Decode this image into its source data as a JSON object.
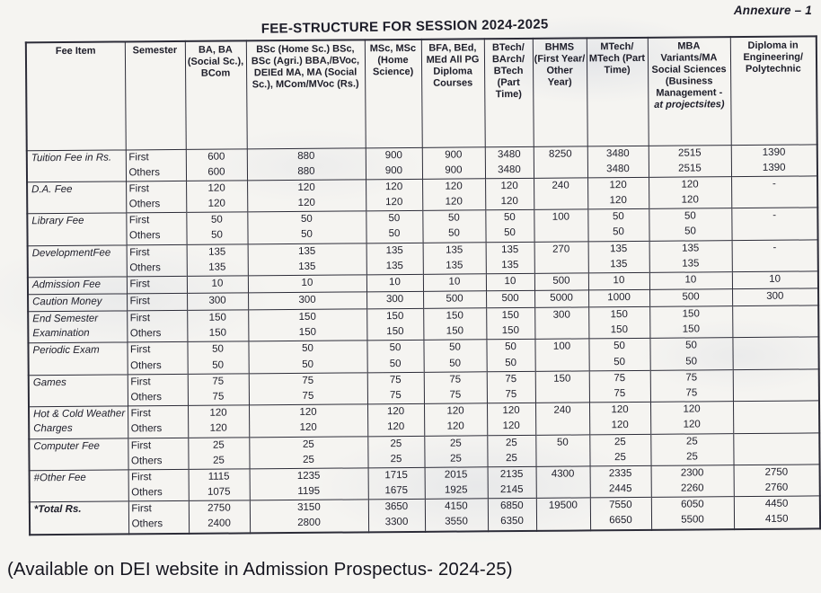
{
  "page": {
    "annexure": "Annexure – 1",
    "title": "FEE-STRUCTURE FOR SESSION 2024-2025",
    "footer": "(Available on DEI website in Admission Prospectus- 2024-25)",
    "ink_color": "#1d1d29",
    "paper_color": "#f5f4f1"
  },
  "table": {
    "columns": [
      {
        "label": "Fee Item",
        "width": 110
      },
      {
        "label": "Semester",
        "width": 67
      },
      {
        "label": "BA, BA (Social Sc.), BCom",
        "width": 68
      },
      {
        "label": "BSc (Home Sc.) BSc, BSc (Agri.) BBA,/BVoc, DEIEd MA, MA (Social Sc.), MCom/MVoc (Rs.)",
        "width": 132
      },
      {
        "label": "MSc, MSc (Home Science)",
        "width": 63
      },
      {
        "label": "BFA, BEd, MEd All PG Diploma Courses",
        "width": 70
      },
      {
        "label": "BTech/ BArch/ BTech (Part Time)",
        "width": 54
      },
      {
        "label": "BHMS (First Year/ Other Year)",
        "width": 60
      },
      {
        "label": "MTech/ MTech (Part Time)",
        "width": 68
      },
      {
        "label": "MBA Variants/MA Social Sciences (Business Management -",
        "italic_note": "at projectsites)",
        "width": 92
      },
      {
        "label": "Diploma in Engineering/ Polytechnic",
        "width": 96
      }
    ],
    "rows": [
      {
        "fee_item": "Tuition Fee in Rs.",
        "semesters": [
          "First",
          "Others"
        ],
        "values": [
          [
            "600",
            "880",
            "900",
            "900",
            "3480",
            "8250",
            "3480",
            "2515",
            "1390"
          ],
          [
            "600",
            "880",
            "900",
            "900",
            "3480",
            "",
            "3480",
            "2515",
            "1390"
          ]
        ]
      },
      {
        "fee_item": "D.A. Fee",
        "semesters": [
          "First",
          "Others"
        ],
        "values": [
          [
            "120",
            "120",
            "120",
            "120",
            "120",
            "240",
            "120",
            "120",
            "-"
          ],
          [
            "120",
            "120",
            "120",
            "120",
            "120",
            "",
            "120",
            "120",
            ""
          ]
        ]
      },
      {
        "fee_item": "Library Fee",
        "semesters": [
          "First",
          "Others"
        ],
        "values": [
          [
            "50",
            "50",
            "50",
            "50",
            "50",
            "100",
            "50",
            "50",
            "-"
          ],
          [
            "50",
            "50",
            "50",
            "50",
            "50",
            "",
            "50",
            "50",
            ""
          ]
        ]
      },
      {
        "fee_item": "DevelopmentFee",
        "semesters": [
          "First",
          "Others"
        ],
        "values": [
          [
            "135",
            "135",
            "135",
            "135",
            "135",
            "270",
            "135",
            "135",
            "-"
          ],
          [
            "135",
            "135",
            "135",
            "135",
            "135",
            "",
            "135",
            "135",
            ""
          ]
        ]
      },
      {
        "fee_item": "Admission Fee",
        "semesters": [
          "First"
        ],
        "values": [
          [
            "10",
            "10",
            "10",
            "10",
            "10",
            "500",
            "10",
            "10",
            "10"
          ]
        ]
      },
      {
        "fee_item": "Caution Money",
        "semesters": [
          "First"
        ],
        "values": [
          [
            "300",
            "300",
            "300",
            "500",
            "500",
            "5000",
            "1000",
            "500",
            "300"
          ]
        ]
      },
      {
        "fee_item": "End Semester Examination",
        "semesters": [
          "First",
          "Others"
        ],
        "values": [
          [
            "150",
            "150",
            "150",
            "150",
            "150",
            "300",
            "150",
            "150",
            ""
          ],
          [
            "150",
            "150",
            "150",
            "150",
            "150",
            "",
            "150",
            "150",
            ""
          ]
        ]
      },
      {
        "fee_item": "Periodic Exam",
        "semesters": [
          "First",
          "Others"
        ],
        "values": [
          [
            "50",
            "50",
            "50",
            "50",
            "50",
            "100",
            "50",
            "50",
            ""
          ],
          [
            "50",
            "50",
            "50",
            "50",
            "50",
            "",
            "50",
            "50",
            ""
          ]
        ]
      },
      {
        "fee_item": "Games",
        "semesters": [
          "First",
          "Others"
        ],
        "values": [
          [
            "75",
            "75",
            "75",
            "75",
            "75",
            "150",
            "75",
            "75",
            ""
          ],
          [
            "75",
            "75",
            "75",
            "75",
            "75",
            "",
            "75",
            "75",
            ""
          ]
        ]
      },
      {
        "fee_item": "Hot & Cold Weather Charges",
        "semesters": [
          "First",
          "Others"
        ],
        "values": [
          [
            "120",
            "120",
            "120",
            "120",
            "120",
            "240",
            "120",
            "120",
            ""
          ],
          [
            "120",
            "120",
            "120",
            "120",
            "120",
            "",
            "120",
            "120",
            ""
          ]
        ]
      },
      {
        "fee_item": "Computer Fee",
        "semesters": [
          "First",
          "Others"
        ],
        "values": [
          [
            "25",
            "25",
            "25",
            "25",
            "25",
            "50",
            "25",
            "25",
            ""
          ],
          [
            "25",
            "25",
            "25",
            "25",
            "25",
            "",
            "25",
            "25",
            ""
          ]
        ]
      },
      {
        "fee_item": "#Other Fee",
        "semesters": [
          "First",
          "Others"
        ],
        "values": [
          [
            "1115",
            "1235",
            "1715",
            "2015",
            "2135",
            "4300",
            "2335",
            "2300",
            "2750"
          ],
          [
            "1075",
            "1195",
            "1675",
            "1925",
            "2145",
            "",
            "2445",
            "2260",
            "2760"
          ]
        ]
      },
      {
        "fee_item": "*Total Rs.",
        "bold": true,
        "semesters": [
          "First",
          "Others"
        ],
        "values": [
          [
            "2750",
            "3150",
            "3650",
            "4150",
            "6850",
            "19500",
            "7550",
            "6050",
            "4450"
          ],
          [
            "2400",
            "2800",
            "3300",
            "3550",
            "6350",
            "",
            "6650",
            "5500",
            "4150"
          ]
        ]
      }
    ]
  }
}
